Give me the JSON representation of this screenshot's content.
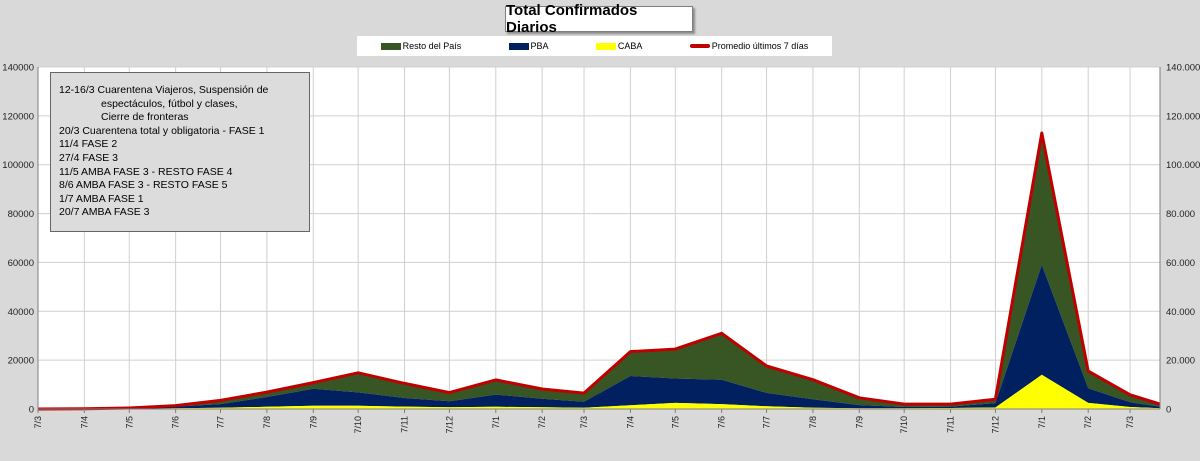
{
  "chart_data": {
    "type": "area",
    "title": "Total Confirmados Diarios",
    "legend": [
      {
        "name": "Resto del País",
        "color": "#375623",
        "kind": "area"
      },
      {
        "name": "PBA",
        "color": "#002060",
        "kind": "area"
      },
      {
        "name": "CABA",
        "color": "#ffff00",
        "kind": "area"
      },
      {
        "name": "Promedio últimos 7 días",
        "color": "#c00000",
        "kind": "line"
      }
    ],
    "legend_position": "top",
    "grid": true,
    "ylim": [
      0,
      140000
    ],
    "y_ticks_left": [
      "0",
      "20000",
      "40000",
      "60000",
      "80000",
      "100000",
      "120000",
      "140000"
    ],
    "y_ticks_right": [
      "0",
      "20.000",
      "40.000",
      "60.000",
      "80.000",
      "100.000",
      "120.000",
      "140.000"
    ],
    "x_tick_labels": [
      "7/3",
      "7/4",
      "7/5",
      "7/6",
      "7/7",
      "7/8",
      "7/9",
      "7/10",
      "7/11",
      "7/12",
      "7/1",
      "7/2",
      "7/3",
      "7/4",
      "7/5",
      "7/6",
      "7/7",
      "7/8",
      "7/9",
      "7/10",
      "7/11",
      "7/12",
      "7/1",
      "7/2",
      "7/3"
    ],
    "x": [
      "2020-03-07",
      "2020-04-07",
      "2020-05-07",
      "2020-06-07",
      "2020-07-07",
      "2020-08-07",
      "2020-09-07",
      "2020-10-07",
      "2020-11-07",
      "2020-12-07",
      "2021-01-07",
      "2021-02-07",
      "2021-03-07",
      "2021-04-07",
      "2021-05-07",
      "2021-06-07",
      "2021-07-07",
      "2021-08-07",
      "2021-09-07",
      "2021-10-07",
      "2021-11-07",
      "2021-12-07",
      "2022-01-07",
      "2022-02-07",
      "2022-03-07",
      "2022-03-27"
    ],
    "series": [
      {
        "name": "CABA",
        "values": [
          0,
          30,
          120,
          300,
          500,
          900,
          1300,
          1300,
          1000,
          700,
          900,
          700,
          500,
          1500,
          2500,
          2000,
          1100,
          500,
          300,
          300,
          400,
          600,
          14000,
          2500,
          800,
          300
        ]
      },
      {
        "name": "PBA",
        "values": [
          0,
          50,
          180,
          700,
          1500,
          4000,
          7000,
          5500,
          3500,
          2500,
          5000,
          3500,
          2500,
          12000,
          10000,
          10000,
          5500,
          3500,
          1300,
          500,
          600,
          1800,
          45000,
          6000,
          2000,
          600
        ]
      },
      {
        "name": "Resto del País",
        "values": [
          0,
          20,
          100,
          400,
          1500,
          2000,
          2500,
          8000,
          6000,
          3500,
          6000,
          4000,
          3500,
          10000,
          12000,
          19000,
          11000,
          8000,
          3000,
          1200,
          1000,
          1600,
          54000,
          7000,
          3000,
          1100
        ]
      },
      {
        "name": "Promedio últimos 7 días",
        "values": [
          0,
          100,
          400,
          1400,
          3500,
          6900,
          10800,
          14800,
          10500,
          6700,
          11900,
          8200,
          6500,
          23500,
          24500,
          31000,
          17600,
          12000,
          4600,
          2000,
          2000,
          4000,
          113000,
          15500,
          5800,
          2000
        ]
      }
    ],
    "annotation": [
      "12-16/3  Cuarentena Viajeros, Suspensión de",
      "espectáculos, fútbol y clases,",
      "Cierre de fronteras",
      "20/3 Cuarentena total y obligatoria - FASE 1",
      "11/4 FASE 2",
      "27/4 FASE 3",
      "11/5 AMBA FASE 3 - RESTO FASE 4",
      "8/6 AMBA FASE 3 - RESTO FASE 5",
      "1/7 AMBA FASE 1",
      "20/7 AMBA FASE 3"
    ]
  }
}
